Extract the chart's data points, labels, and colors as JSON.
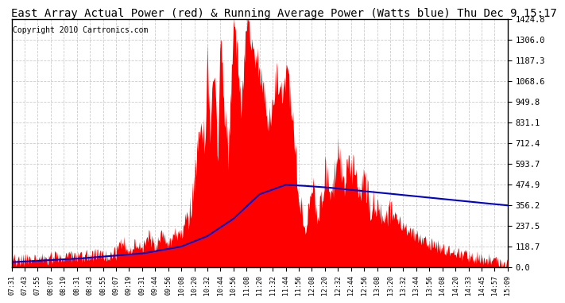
{
  "title": "East Array Actual Power (red) & Running Average Power (Watts blue) Thu Dec 9 15:17",
  "copyright": "Copyright 2010 Cartronics.com",
  "y_ticks": [
    0.0,
    118.7,
    237.5,
    356.2,
    474.9,
    593.7,
    712.4,
    831.1,
    949.8,
    1068.6,
    1187.3,
    1306.0,
    1424.8
  ],
  "y_max": 1424.8,
  "y_min": 0.0,
  "x_labels": [
    "07:31",
    "07:43",
    "07:55",
    "08:07",
    "08:19",
    "08:31",
    "08:43",
    "08:55",
    "09:07",
    "09:19",
    "09:31",
    "09:44",
    "09:56",
    "10:08",
    "10:20",
    "10:32",
    "10:44",
    "10:56",
    "11:08",
    "11:20",
    "11:32",
    "11:44",
    "11:56",
    "12:08",
    "12:20",
    "12:32",
    "12:44",
    "12:56",
    "13:08",
    "13:20",
    "13:32",
    "13:44",
    "13:56",
    "14:08",
    "14:20",
    "14:33",
    "14:45",
    "14:57",
    "15:09"
  ],
  "red_color": "#FF0000",
  "blue_color": "#0000CC",
  "bg_color": "#FFFFFF",
  "grid_color": "#CCCCCC",
  "title_fontsize": 10,
  "copyright_fontsize": 7
}
